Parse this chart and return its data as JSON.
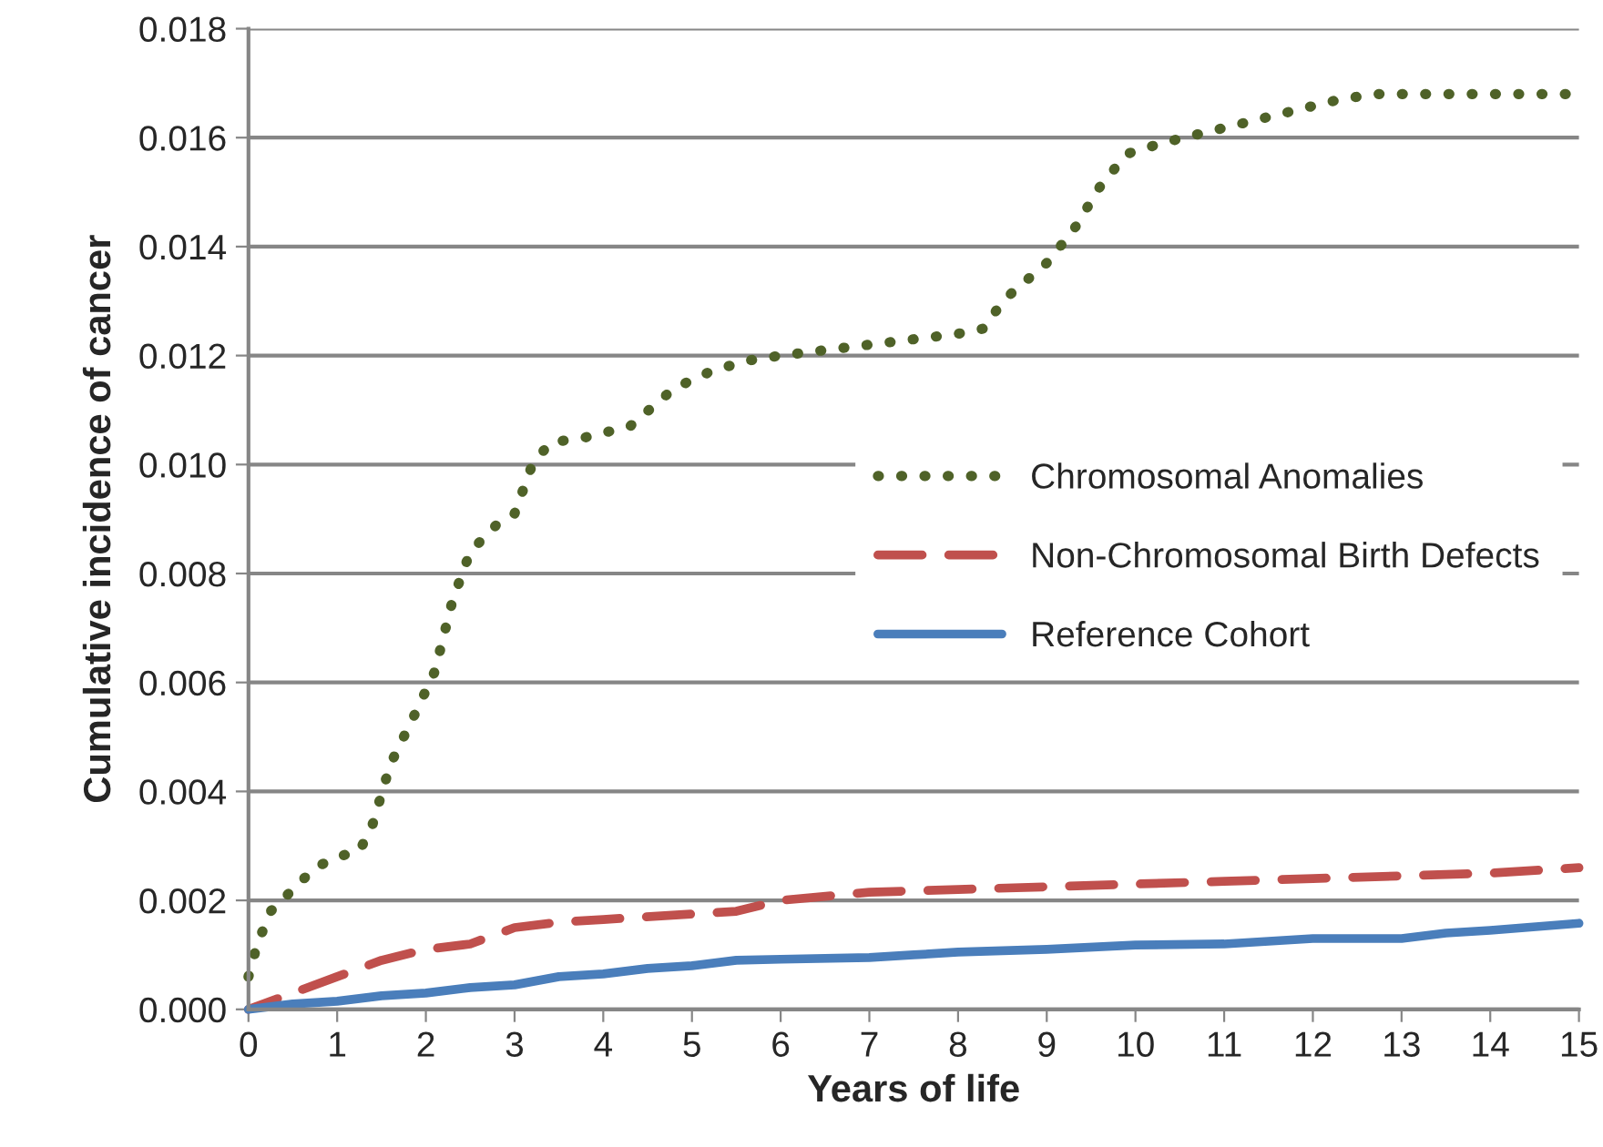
{
  "chart_data": {
    "type": "line",
    "xlabel": "Years of life",
    "ylabel": "Cumulative incidence of cancer",
    "xlim": [
      0,
      15
    ],
    "xticks": [
      0,
      1,
      2,
      3,
      4,
      5,
      6,
      7,
      8,
      9,
      10,
      11,
      12,
      13,
      14,
      15
    ],
    "ylim": [
      0,
      0.018
    ],
    "yticks": [
      {
        "value": 0,
        "label": "0.000"
      },
      {
        "value": 0.002,
        "label": "0.002"
      },
      {
        "value": 0.004,
        "label": "0.004"
      },
      {
        "value": 0.006,
        "label": "0.006"
      },
      {
        "value": 0.008,
        "label": "0.008"
      },
      {
        "value": 0.01,
        "label": "0.010"
      },
      {
        "value": 0.012,
        "label": "0.012"
      },
      {
        "value": 0.014,
        "label": "0.014"
      },
      {
        "value": 0.016,
        "label": "0.016"
      },
      {
        "value": 0.018,
        "label": "0.018"
      }
    ],
    "grid": "y",
    "legend": "right",
    "marker": "none",
    "series": [
      {
        "name": "Chromosomal Anomalies",
        "color": "#4f6228",
        "line_style": "dotted",
        "x": [
          0,
          0.1,
          0.25,
          0.5,
          0.75,
          1,
          1.25,
          1.4,
          1.6,
          1.9,
          2.1,
          2.3,
          2.5,
          2.8,
          3.0,
          3.2,
          3.4,
          3.8,
          4.3,
          4.8,
          5.2,
          5.6,
          6.0,
          6.5,
          7,
          7.5,
          8,
          8.3,
          8.5,
          9.0,
          9.3,
          9.6,
          9.9,
          10.3,
          10.8,
          11.3,
          11.8,
          12.3,
          12.7,
          15
        ],
        "values": [
          0.0006,
          0.0012,
          0.0018,
          0.0022,
          0.0026,
          0.0028,
          0.0029,
          0.0034,
          0.0045,
          0.0055,
          0.0062,
          0.0075,
          0.0084,
          0.0089,
          0.0091,
          0.01,
          0.0104,
          0.0105,
          0.0107,
          0.0114,
          0.0117,
          0.0119,
          0.012,
          0.0121,
          0.0122,
          0.0123,
          0.0124,
          0.0125,
          0.013,
          0.0137,
          0.0143,
          0.0151,
          0.0157,
          0.0159,
          0.0161,
          0.0163,
          0.0165,
          0.0167,
          0.0168,
          0.0168
        ]
      },
      {
        "name": "Non-Chromosomal Birth Defects",
        "color": "#c0504d",
        "line_style": "dashed",
        "x": [
          0,
          0.5,
          1,
          1.5,
          2,
          2.5,
          3,
          3.5,
          4,
          5,
          5.5,
          6,
          7,
          8,
          9,
          10,
          11,
          12,
          13,
          14,
          15
        ],
        "values": [
          0,
          0.0003,
          0.0006,
          0.0009,
          0.0011,
          0.0012,
          0.0015,
          0.0016,
          0.00165,
          0.00175,
          0.0018,
          0.002,
          0.00215,
          0.0022,
          0.00225,
          0.0023,
          0.00235,
          0.0024,
          0.00245,
          0.0025,
          0.0026
        ]
      },
      {
        "name": "Reference Cohort",
        "color": "#4a7ebb",
        "line_style": "solid",
        "x": [
          0,
          0.5,
          1,
          1.5,
          2,
          2.5,
          3,
          3.5,
          4,
          4.5,
          5,
          5.5,
          6,
          7,
          7.5,
          8,
          9,
          10,
          11,
          11.5,
          12,
          13,
          13.5,
          14,
          15
        ],
        "values": [
          0,
          0.0001,
          0.00015,
          0.00025,
          0.0003,
          0.0004,
          0.00045,
          0.0006,
          0.00065,
          0.00075,
          0.0008,
          0.0009,
          0.00092,
          0.00095,
          0.001,
          0.00105,
          0.0011,
          0.00118,
          0.0012,
          0.00125,
          0.0013,
          0.0013,
          0.0014,
          0.00145,
          0.00158
        ]
      }
    ]
  }
}
